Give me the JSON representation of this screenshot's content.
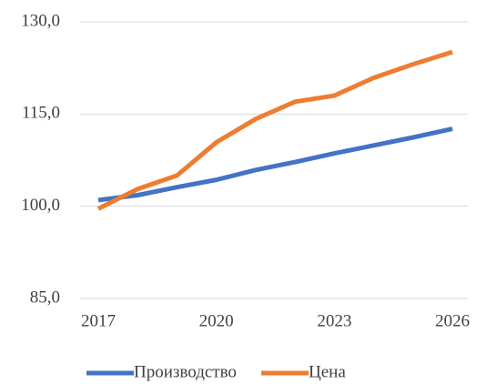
{
  "chart_data": {
    "type": "line",
    "x": [
      2017,
      2018,
      2019,
      2020,
      2021,
      2022,
      2023,
      2024,
      2025,
      2026
    ],
    "xlim": [
      2017,
      2026
    ],
    "xticks": [
      2017,
      2020,
      2023,
      2026
    ],
    "ylim": [
      85,
      130
    ],
    "yticks": [
      {
        "value": 85,
        "label": "85,0"
      },
      {
        "value": 100,
        "label": "100,0"
      },
      {
        "value": 115,
        "label": "115,0"
      },
      {
        "value": 130,
        "label": "130,0"
      }
    ],
    "grid": true,
    "legend": "bottom",
    "series": [
      {
        "name": "Производство",
        "color": "#4472c4",
        "values": [
          101.0,
          101.8,
          103.1,
          104.3,
          105.9,
          107.2,
          108.6,
          109.9,
          111.2,
          112.6
        ]
      },
      {
        "name": "Цена",
        "color": "#ed7d31",
        "values": [
          99.6,
          102.8,
          105.0,
          110.4,
          114.2,
          117.0,
          118.0,
          120.9,
          123.1,
          125.1
        ]
      }
    ]
  }
}
